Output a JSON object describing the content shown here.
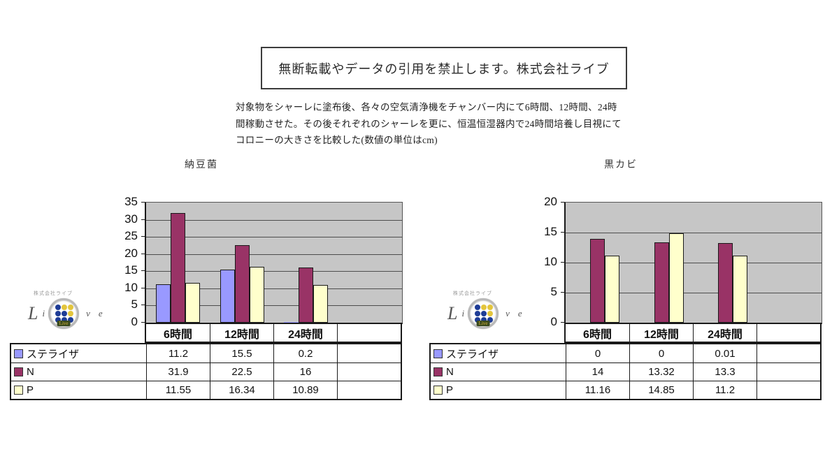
{
  "page": {
    "notice": "無断転載やデータの引用を禁止します。株式会社ライブ",
    "description_lines": [
      "対象物をシャーレに塗布後、各々の空気清浄機をチャンバー内にて6時間、12時間、24時",
      "間稼動させた。その後それぞれのシャーレを更に、恒温恒湿器内で24時間培養し目視にて",
      "コロニーの大きさを比較した(数値の単位はcm)"
    ]
  },
  "logo": {
    "company_small": "株式会社ライブ",
    "letters": {
      "L": "L",
      "i": "i",
      "v": "v",
      "e": "e"
    },
    "badge_text": "Live",
    "dot_colors": [
      [
        "#1e3c96",
        "#e3c53c",
        "#e3c53c"
      ],
      [
        "#1e3c96",
        "#1e3c96",
        "#e3c53c"
      ],
      [
        "#1e3c96",
        "#1e3c96",
        "#1e3c96"
      ]
    ]
  },
  "colors": {
    "plot_background": "#c6c6c6",
    "gridline": "#4d4d4d",
    "bar_border": "#1a1a1a",
    "series_sterilizer": "#9999ff",
    "series_n": "#993366",
    "series_p": "#ffffcc"
  },
  "chart_data": [
    {
      "type": "bar",
      "title": "納豆菌",
      "unit": "cm",
      "categories": [
        "6時間",
        "12時間",
        "24時間",
        ""
      ],
      "series": [
        {
          "name": "ステライザ",
          "color": "#9999ff",
          "values": [
            11.2,
            15.5,
            0.2,
            null
          ]
        },
        {
          "name": "N",
          "color": "#993366",
          "values": [
            31.9,
            22.5,
            16,
            null
          ]
        },
        {
          "name": "P",
          "color": "#ffffcc",
          "values": [
            11.55,
            16.34,
            10.89,
            null
          ]
        }
      ],
      "ylim": [
        0,
        35
      ],
      "yticks": [
        35,
        30,
        25,
        20,
        15,
        10,
        5,
        0
      ],
      "grid": true,
      "legend_position": "table-left",
      "plot_bg": "#c6c6c6"
    },
    {
      "type": "bar",
      "title": "黒カビ",
      "unit": "cm",
      "categories": [
        "6時間",
        "12時間",
        "24時間",
        ""
      ],
      "series": [
        {
          "name": "ステライザ",
          "color": "#9999ff",
          "values": [
            0,
            0,
            0.01,
            null
          ]
        },
        {
          "name": "N",
          "color": "#993366",
          "values": [
            14,
            13.32,
            13.3,
            null
          ]
        },
        {
          "name": "P",
          "color": "#ffffcc",
          "values": [
            11.16,
            14.85,
            11.2,
            null
          ]
        }
      ],
      "ylim": [
        0,
        20
      ],
      "yticks": [
        20,
        15,
        10,
        5,
        0
      ],
      "grid": true,
      "legend_position": "table-left",
      "plot_bg": "#c6c6c6"
    }
  ]
}
